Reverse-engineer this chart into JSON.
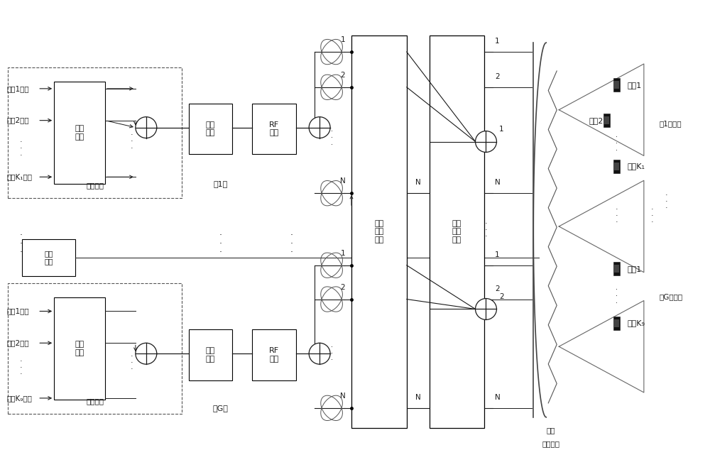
{
  "bg_color": "#ffffff",
  "line_color": "#1a1a1a",
  "fig_width": 10.0,
  "fig_height": 6.34,
  "top_group_label": "第1组",
  "bottom_group_label": "第G组",
  "channel_est_label": "信道\n估计",
  "power_alloc_label": "功率\n分配",
  "superpos_label": "叠加编码",
  "dac_label": "数模\n转换",
  "rf_label": "RF\n链路",
  "beam_net_label": "波束\n选择\n网络",
  "lens_label_1": "透镜",
  "lens_label_2": "天线阵列",
  "group1_users_label": "第1组用户",
  "groupG_users_label": "第G组用户",
  "user1_label": "用户1",
  "user2_label": "用户2",
  "userK1_label": "用户K₁",
  "userKg_label": "用户K₉",
  "top_user_labels": [
    "用户1数据",
    "用户2数据",
    "用户K₁数据"
  ],
  "bot_user_labels": [
    "用户1数据",
    "用户2数据",
    "用户K₉数据"
  ]
}
